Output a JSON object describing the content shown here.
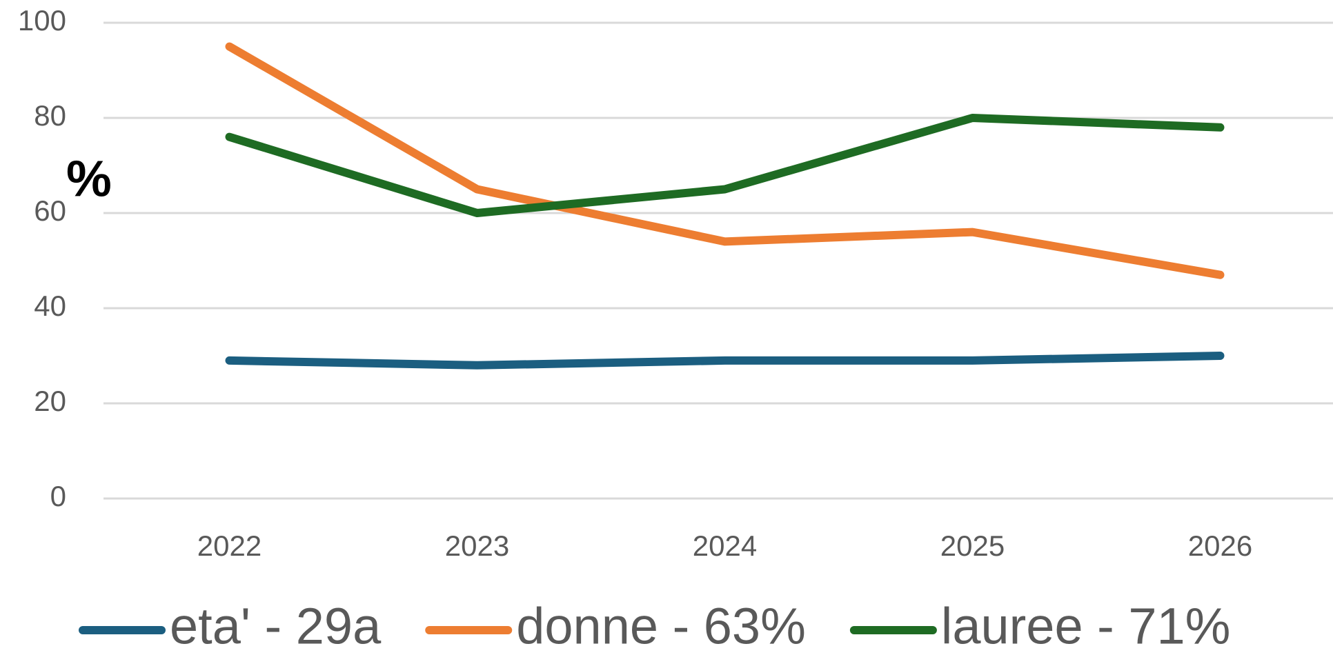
{
  "chart_data": {
    "type": "line",
    "y_label": "%",
    "categories": [
      "2022",
      "2023",
      "2024",
      "2025",
      "2026"
    ],
    "series": [
      {
        "name": "eta' - 29a",
        "color": "#1b5e80",
        "values": [
          29,
          28,
          29,
          29,
          30
        ]
      },
      {
        "name": "donne - 63%",
        "color": "#ed7d31",
        "values": [
          95,
          65,
          54,
          56,
          47
        ]
      },
      {
        "name": "lauree - 71%",
        "color": "#1e6b23",
        "values": [
          76,
          60,
          65,
          80,
          78
        ]
      }
    ],
    "ylim": [
      0,
      100
    ],
    "yticks": [
      0,
      20,
      40,
      60,
      80,
      100
    ],
    "grid": true,
    "legend": "bottom"
  }
}
